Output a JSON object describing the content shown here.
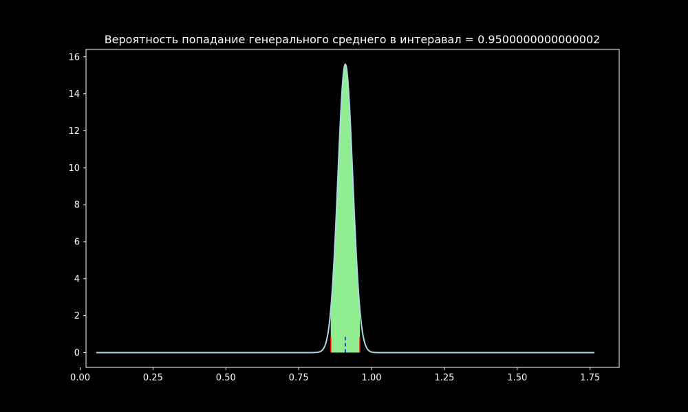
{
  "chart_data": {
    "type": "line",
    "title": "Вероятность попадание генерального среднего в интеравал = 0.9500000000000002",
    "xlabel": "",
    "ylabel": "",
    "xlim": [
      0.02,
      1.85
    ],
    "ylim": [
      -0.8,
      16.4
    ],
    "x_ticks": [
      0.0,
      0.25,
      0.5,
      0.75,
      1.0,
      1.25,
      1.5,
      1.75
    ],
    "x_tick_labels": [
      "0.00",
      "0.25",
      "0.50",
      "0.75",
      "1.00",
      "1.25",
      "1.50",
      "1.75"
    ],
    "y_ticks": [
      0,
      2,
      4,
      6,
      8,
      10,
      12,
      14,
      16
    ],
    "y_tick_labels": [
      "0",
      "2",
      "4",
      "6",
      "8",
      "10",
      "12",
      "14",
      "16"
    ],
    "grid": false,
    "background": "#000000",
    "series": [
      {
        "kind": "normal_density_curve",
        "mean": 0.91,
        "std": 0.0256,
        "x_range": [
          0.055,
          1.765
        ],
        "peak_y": 15.6,
        "color": "#add8e6"
      }
    ],
    "shaded_interval": {
      "from": 0.86,
      "to": 0.96,
      "probability": 0.9500000000000002,
      "color": "#90ee90"
    },
    "markers": [
      {
        "kind": "interval-bound",
        "x": 0.86,
        "y_from": 0,
        "y_to": 0.85,
        "color": "#ff0000",
        "style": "solid"
      },
      {
        "kind": "interval-bound",
        "x": 0.96,
        "y_from": 0,
        "y_to": 0.85,
        "color": "#ff0000",
        "style": "solid"
      },
      {
        "kind": "mean",
        "x": 0.91,
        "y_from": 0,
        "y_to": 0.85,
        "color": "#0000ff",
        "style": "dashed"
      }
    ],
    "axes_color": "#ffffff"
  }
}
